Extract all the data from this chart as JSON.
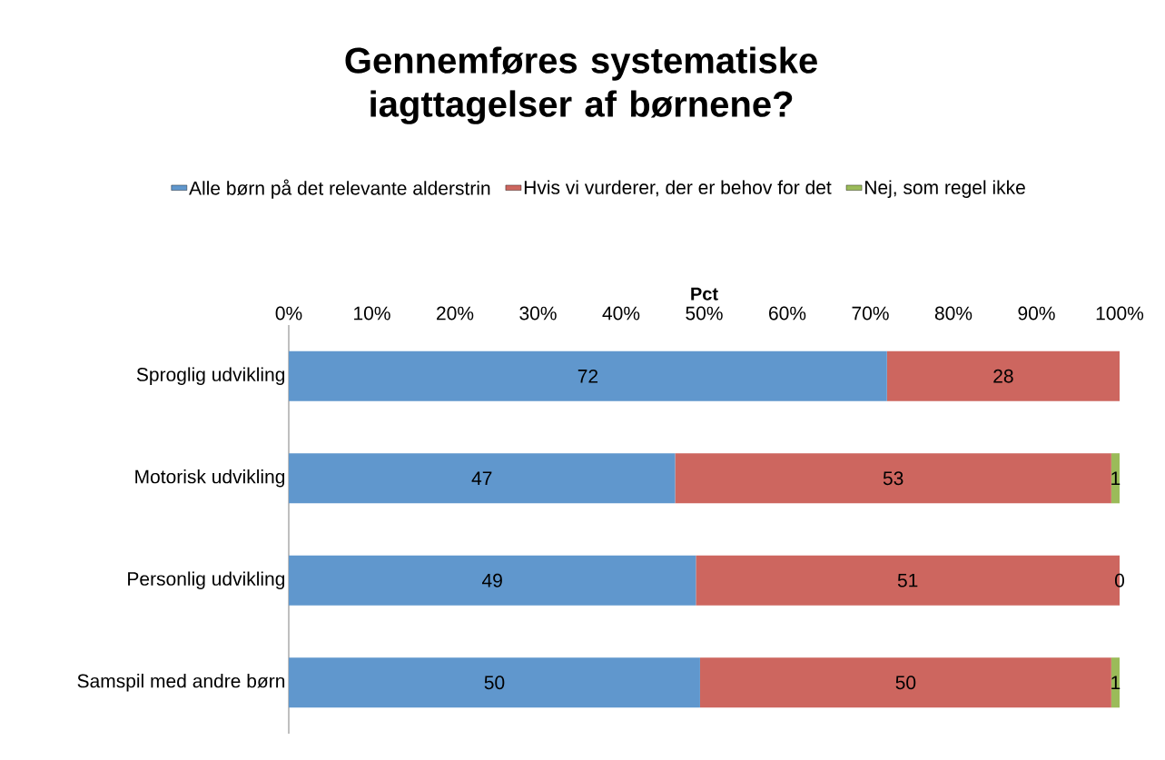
{
  "chart_data": {
    "type": "bar",
    "orientation": "horizontal",
    "stacked": true,
    "title": "Gennemføres systematiske iagttagelser af børnene?",
    "xlabel": "Pct",
    "categories": [
      "Sproglig udvikling",
      "Motorisk udvikling",
      "Personlig udvikling",
      "Samspil med andre børn"
    ],
    "series": [
      {
        "name": "Alle børn på det relevante alderstrin",
        "color": "#6097cd",
        "values": [
          72,
          46.5,
          49,
          49.5
        ],
        "value_labels": [
          "72",
          "47",
          "49",
          "50"
        ]
      },
      {
        "name": "Hvis vi vurderer, der er behov for det",
        "color": "#cd665f",
        "values": [
          28,
          52.5,
          51,
          49.5
        ],
        "value_labels": [
          "28",
          "53",
          "51",
          "50"
        ]
      },
      {
        "name": "Nej, som regel ikke",
        "color": "#9bbb59",
        "values": [
          null,
          1,
          0,
          1
        ],
        "value_labels": [
          null,
          "1",
          "0",
          "1"
        ]
      }
    ],
    "xlim": [
      0,
      100
    ],
    "xticks": [
      {
        "value": 0,
        "label": "0%"
      },
      {
        "value": 10,
        "label": "10%"
      },
      {
        "value": 20,
        "label": "20%"
      },
      {
        "value": 30,
        "label": "30%"
      },
      {
        "value": 40,
        "label": "40%"
      },
      {
        "value": 50,
        "label": "50%"
      },
      {
        "value": 60,
        "label": "60%"
      },
      {
        "value": 70,
        "label": "70%"
      },
      {
        "value": 80,
        "label": "80%"
      },
      {
        "value": 90,
        "label": "90%"
      },
      {
        "value": 100,
        "label": "100%"
      }
    ],
    "legend": "top"
  }
}
